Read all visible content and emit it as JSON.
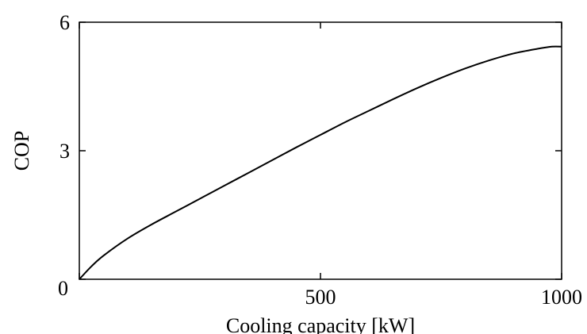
{
  "chart_data": {
    "type": "line",
    "title": "",
    "xlabel": "Cooling capacity [kW]",
    "ylabel": "COP",
    "xlim": [
      0,
      1000
    ],
    "ylim": [
      0,
      6
    ],
    "x_ticks": [
      0,
      500,
      1000
    ],
    "y_ticks": [
      0,
      3,
      6
    ],
    "x_tick_labels": [
      "",
      "500",
      "1000"
    ],
    "y_tick_labels": [
      "0",
      "3",
      "6"
    ],
    "grid": false,
    "legend": "none",
    "line_color": "#000000",
    "series": [
      {
        "x": [
          0,
          25,
          50,
          100,
          150,
          200,
          250,
          300,
          350,
          400,
          450,
          500,
          550,
          600,
          650,
          700,
          750,
          800,
          850,
          900,
          950,
          980,
          1000
        ],
        "values": [
          0,
          0.3,
          0.55,
          0.95,
          1.28,
          1.58,
          1.88,
          2.18,
          2.48,
          2.78,
          3.08,
          3.37,
          3.66,
          3.93,
          4.2,
          4.46,
          4.7,
          4.92,
          5.11,
          5.27,
          5.38,
          5.43,
          5.43
        ]
      }
    ]
  }
}
